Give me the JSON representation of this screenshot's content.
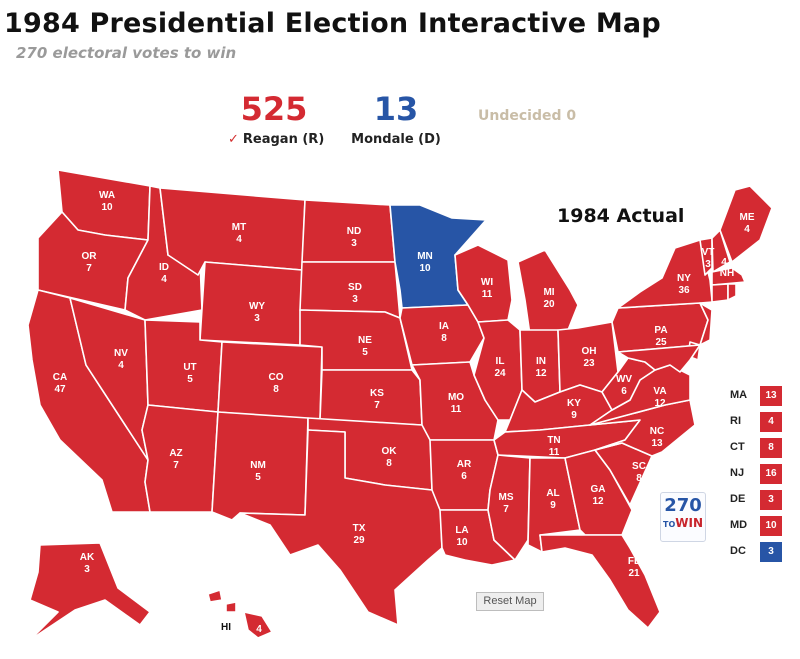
{
  "page": {
    "title": "1984 Presidential Election Interactive Map",
    "subtitle": "270 electoral votes to win"
  },
  "scoreboard": {
    "rep": {
      "votes": "525",
      "name": "Reagan (R)",
      "check": "✓"
    },
    "dem": {
      "votes": "13",
      "name": "Mondale (D)"
    },
    "undecided": "Undecided 0"
  },
  "map_label": "1984 Actual",
  "colors": {
    "rep": "#d42a32",
    "dem": "#2755a6"
  },
  "states": {
    "WA": "10",
    "OR": "7",
    "CA": "47",
    "ID": "4",
    "NV": "4",
    "MT": "4",
    "WY": "3",
    "UT": "5",
    "AZ": "7",
    "CO": "8",
    "NM": "5",
    "ND": "3",
    "SD": "3",
    "NE": "5",
    "KS": "7",
    "OK": "8",
    "TX": "29",
    "MN": "10",
    "IA": "8",
    "MO": "11",
    "AR": "6",
    "LA": "10",
    "WI": "11",
    "IL": "24",
    "MI": "20",
    "IN": "12",
    "OH": "23",
    "KY": "9",
    "TN": "11",
    "MS": "7",
    "AL": "9",
    "GA": "12",
    "FL": "21",
    "SC": "8",
    "NC": "13",
    "VA": "12",
    "WV": "6",
    "PA": "25",
    "NY": "36",
    "VT": "3",
    "NH": "4",
    "ME": "4",
    "AK": "3",
    "HI": "4"
  },
  "state_names": {
    "WA": "WA",
    "OR": "OR",
    "CA": "CA",
    "ID": "ID",
    "NV": "NV",
    "MT": "MT",
    "WY": "WY",
    "UT": "UT",
    "AZ": "AZ",
    "CO": "CO",
    "NM": "NM",
    "ND": "ND",
    "SD": "SD",
    "NE": "NE",
    "KS": "KS",
    "OK": "OK",
    "TX": "TX",
    "MN": "MN",
    "IA": "IA",
    "MO": "MO",
    "AR": "AR",
    "LA": "LA",
    "WI": "WI",
    "IL": "IL",
    "MI": "MI",
    "IN": "IN",
    "OH": "OH",
    "KY": "KY",
    "TN": "TN",
    "MS": "MS",
    "AL": "AL",
    "GA": "GA",
    "FL": "FL",
    "SC": "SC",
    "NC": "NC",
    "VA": "VA",
    "WV": "WV",
    "PA": "PA",
    "NY": "NY",
    "VT": "VT",
    "NH": "NH",
    "ME": "ME",
    "AK": "AK",
    "HI": "HI"
  },
  "sidebar": [
    {
      "abbr": "MA",
      "votes": "13",
      "party": "rep"
    },
    {
      "abbr": "RI",
      "votes": "4",
      "party": "rep"
    },
    {
      "abbr": "CT",
      "votes": "8",
      "party": "rep"
    },
    {
      "abbr": "NJ",
      "votes": "16",
      "party": "rep"
    },
    {
      "abbr": "DE",
      "votes": "3",
      "party": "rep"
    },
    {
      "abbr": "MD",
      "votes": "10",
      "party": "rep"
    },
    {
      "abbr": "DC",
      "votes": "3",
      "party": "dem"
    }
  ],
  "logo": {
    "top": "270",
    "bottom": "WIN",
    "mid": "TO"
  },
  "reset_label": "Reset Map"
}
